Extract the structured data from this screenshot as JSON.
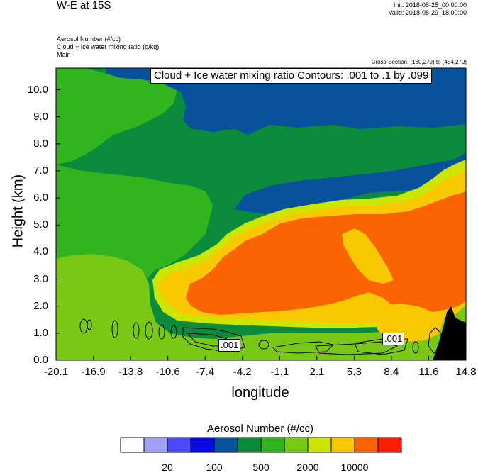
{
  "header": {
    "title": "W-E at 15S",
    "init": "Init: 2018-08-25_00:00:00",
    "valid": "Valid: 2018-08-29_18:00:00",
    "fields": [
      "Aerosol Number   (#/cc)",
      "Cloud + Ice water mixing ratio   (g/kg)",
      "Main"
    ],
    "cross_section": "Cross-Section: (130,279) to (454,279)"
  },
  "contour_info": "Cloud + Ice water mixing ratio Contours: .001 to .1 by .099",
  "contour_labels": [
    ".001",
    ".001"
  ],
  "colors": {
    "bins": [
      "#ffffff",
      "#a0a0f7",
      "#4b4bf7",
      "#0a0ae6",
      "#08529c",
      "#0a8c3c",
      "#32b41e",
      "#78c814",
      "#cde600",
      "#fac800",
      "#fa6400",
      "#ff1e00"
    ],
    "terrain": "#000000"
  },
  "chart_data": {
    "type": "heatmap",
    "xlabel": "longitude",
    "ylabel": "Height (km)",
    "x_ticks": [
      "-20.1",
      "-16.9",
      "-13.8",
      "-10.6",
      "-7.4",
      "-4.2",
      "-1.1",
      "2.1",
      "5.3",
      "8.4",
      "11.6",
      "14.8"
    ],
    "y_ticks": [
      "0.0",
      "1.0",
      "2.0",
      "3.0",
      "4.0",
      "5.0",
      "6.0",
      "7.0",
      "8.0",
      "9.0",
      "10.0"
    ],
    "xlim": [
      -20.1,
      14.8
    ],
    "ylim": [
      0,
      10.8
    ],
    "legend_title": "Aerosol Number  (#/cc)",
    "colorbar_labels": [
      "20",
      "100",
      "500",
      "2000",
      "10000"
    ]
  }
}
